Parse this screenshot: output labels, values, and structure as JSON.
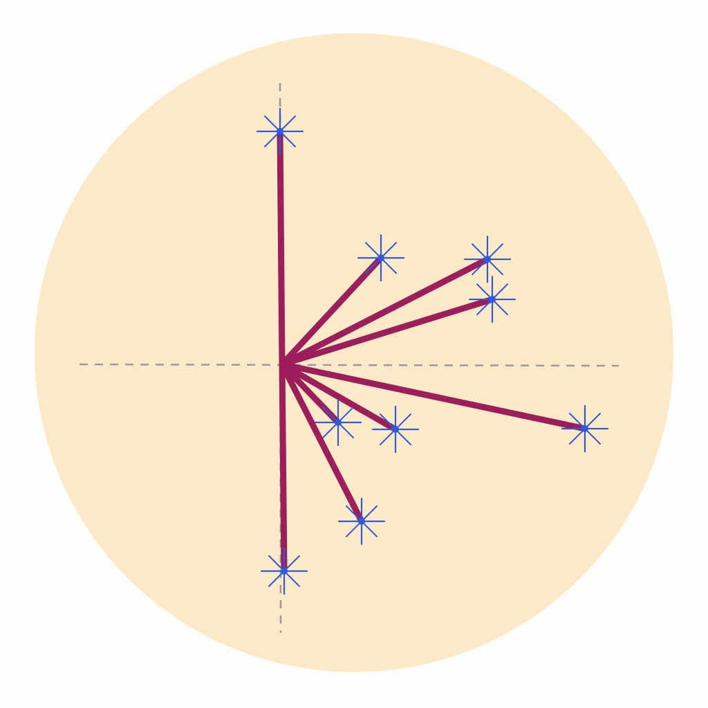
{
  "diagram": {
    "background_color": "#fdfdfc",
    "disc_color": "#fce9c8",
    "axis_color": "#9a9a9a",
    "vector_color": "#9c1f5c",
    "star_color": "#2f5bd6",
    "axis_style": "dashed",
    "marker_icon": "eight-point-star-icon",
    "vector_count": 9
  }
}
